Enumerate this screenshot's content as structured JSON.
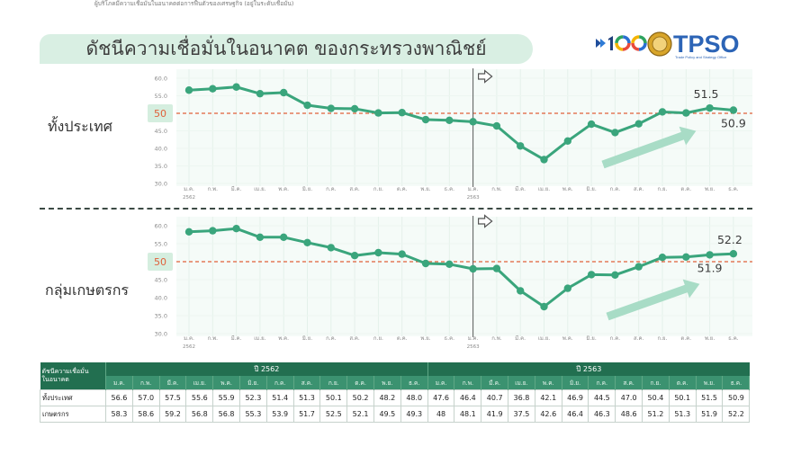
{
  "header": {
    "caption": "ผู้บริโภคมีความเชื่อมั่นในอนาคตต่อการฟื้นตัวของเศรษฐกิจ (อยู่ในระดับเชื่อมั่น)",
    "title": "ดัชนีความเชื่อมั่นในอนาคต ของกระทรวงพาณิชย์"
  },
  "logos": {
    "moc_logo": "100",
    "tpso_logo": "TPSO",
    "tpso_tagline": "Trade Policy and Strategy Office"
  },
  "colors": {
    "line": "#3aa57c",
    "reference_line": "#e0603a",
    "highlight": "#d5eedf",
    "trend_arrow": "#a8dcc6",
    "title_banner": "#d9efe3",
    "header_dark": "#226f50",
    "header_months": "#3b9270"
  },
  "chart_data": [
    {
      "type": "line",
      "label": "ทั้งประเทศ",
      "x": [
        "ม.ค.",
        "ก.พ.",
        "มี.ค.",
        "เม.ย.",
        "พ.ค.",
        "มิ.ย.",
        "ก.ค.",
        "ส.ค.",
        "ก.ย.",
        "ต.ค.",
        "พ.ย.",
        "ธ.ค.",
        "ม.ค.",
        "ก.พ.",
        "มี.ค.",
        "เม.ย.",
        "พ.ค.",
        "มิ.ย.",
        "ก.ค.",
        "ส.ค.",
        "ก.ย.",
        "ต.ค.",
        "พ.ย.",
        "ธ.ค."
      ],
      "year_labels": [
        {
          "index": 0,
          "label": "2562"
        },
        {
          "index": 12,
          "label": "2563"
        }
      ],
      "yticks": [
        60,
        55,
        50,
        45,
        40,
        35,
        30
      ],
      "ytick_labels": [
        "60.0",
        "55.0",
        "50",
        "45.0",
        "40.0",
        "35.0",
        "30.0"
      ],
      "ylim": [
        30,
        60
      ],
      "reference_line": 50,
      "divider_index": 12,
      "grid": true,
      "series": [
        {
          "values": [
            56.6,
            57.0,
            57.5,
            55.6,
            55.9,
            52.3,
            51.4,
            51.3,
            50.1,
            50.2,
            48.2,
            48.0,
            47.6,
            46.4,
            40.7,
            36.8,
            42.1,
            46.9,
            44.5,
            47.0,
            50.4,
            50.1,
            51.5,
            50.9
          ]
        }
      ],
      "annotations": [
        {
          "index": 22,
          "text": "51.5"
        },
        {
          "index": 23,
          "text": "50.9"
        }
      ]
    },
    {
      "type": "line",
      "label": "กลุ่มเกษตรกร",
      "x": [
        "ม.ค.",
        "ก.พ.",
        "มี.ค.",
        "เม.ย.",
        "พ.ค.",
        "มิ.ย.",
        "ก.ค.",
        "ส.ค.",
        "ก.ย.",
        "ต.ค.",
        "พ.ย.",
        "ธ.ค.",
        "ม.ค.",
        "ก.พ.",
        "มี.ค.",
        "เม.ย.",
        "พ.ค.",
        "มิ.ย.",
        "ก.ค.",
        "ส.ค.",
        "ก.ย.",
        "ต.ค.",
        "พ.ย.",
        "ธ.ค."
      ],
      "year_labels": [
        {
          "index": 0,
          "label": "2562"
        },
        {
          "index": 12,
          "label": "2563"
        }
      ],
      "yticks": [
        60,
        55,
        50,
        45,
        40,
        35,
        30
      ],
      "ytick_labels": [
        "60.0",
        "55.0",
        "50",
        "45.0",
        "40.0",
        "35.0",
        "30.0"
      ],
      "ylim": [
        30,
        60
      ],
      "reference_line": 50,
      "divider_index": 12,
      "grid": true,
      "series": [
        {
          "values": [
            58.3,
            58.6,
            59.2,
            56.8,
            56.8,
            55.3,
            53.9,
            51.7,
            52.5,
            52.1,
            49.5,
            49.3,
            48.0,
            48.1,
            41.9,
            37.5,
            42.6,
            46.4,
            46.3,
            48.6,
            51.2,
            51.3,
            51.9,
            52.2
          ]
        }
      ],
      "annotations": [
        {
          "index": 23,
          "text": "52.2"
        },
        {
          "index": 22,
          "text": "51.9"
        }
      ]
    }
  ],
  "table": {
    "corner_lines": [
      "ดัชนีความเชื่อมั่น",
      "ในอนาคต"
    ],
    "years": [
      {
        "label": "ปี 2562",
        "span": 12
      },
      {
        "label": "ปี 2563",
        "span": 12
      }
    ],
    "months": [
      "ม.ค.",
      "ก.พ.",
      "มี.ค.",
      "เม.ย.",
      "พ.ค.",
      "มิ.ย.",
      "ก.ค.",
      "ส.ค.",
      "ก.ย.",
      "ต.ค.",
      "พ.ย.",
      "ธ.ค.",
      "ม.ค.",
      "ก.พ.",
      "มี.ค.",
      "เม.ย.",
      "พ.ค.",
      "มิ.ย.",
      "ก.ค.",
      "ส.ค.",
      "ก.ย.",
      "ต.ค.",
      "พ.ย.",
      "ธ.ค."
    ],
    "rows": [
      {
        "label": "ทั้งประเทศ",
        "values": [
          "56.6",
          "57.0",
          "57.5",
          "55.6",
          "55.9",
          "52.3",
          "51.4",
          "51.3",
          "50.1",
          "50.2",
          "48.2",
          "48.0",
          "47.6",
          "46.4",
          "40.7",
          "36.8",
          "42.1",
          "46.9",
          "44.5",
          "47.0",
          "50.4",
          "50.1",
          "51.5",
          "50.9"
        ]
      },
      {
        "label": "เกษตรกร",
        "values": [
          "58.3",
          "58.6",
          "59.2",
          "56.8",
          "56.8",
          "55.3",
          "53.9",
          "51.7",
          "52.5",
          "52.1",
          "49.5",
          "49.3",
          "48",
          "48.1",
          "41.9",
          "37.5",
          "42.6",
          "46.4",
          "46.3",
          "48.6",
          "51.2",
          "51.3",
          "51.9",
          "52.2"
        ]
      }
    ]
  }
}
